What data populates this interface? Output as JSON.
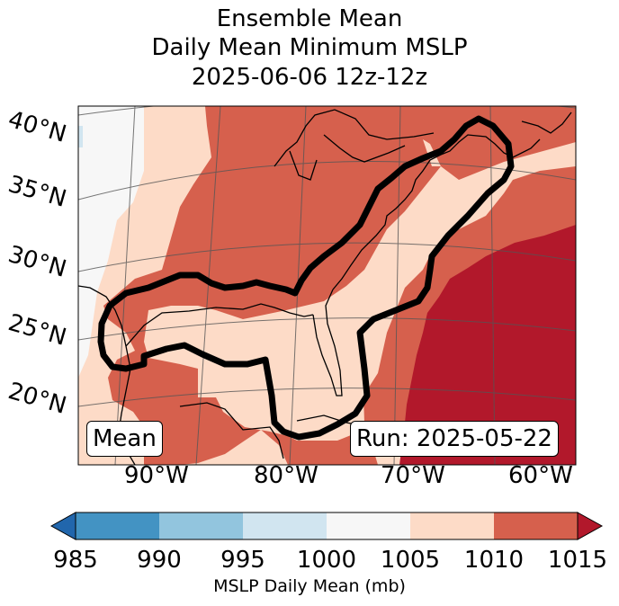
{
  "title": {
    "line1": "Ensemble Mean",
    "line2": "Daily Mean Minimum MSLP",
    "line3": "2025-06-06 12z-12z"
  },
  "map": {
    "lat_labels": [
      "40°N",
      "35°N",
      "30°N",
      "25°N",
      "20°N"
    ],
    "lon_labels": [
      "90°W",
      "80°W",
      "70°W",
      "60°W"
    ],
    "inset_left": "Mean",
    "inset_right": "Run: 2025-05-22",
    "contour_color": "#000000"
  },
  "colorbar": {
    "ticks": [
      "985",
      "990",
      "995",
      "1000",
      "1005",
      "1010",
      "1015"
    ],
    "colors": {
      "below_985": "#2166ac",
      "985_990": "#4393c3",
      "990_995": "#92c5de",
      "995_1000": "#d1e5f0",
      "1000_1005": "#f7f7f7",
      "1005_1010": "#fddbc7",
      "1010_1015": "#d6604d",
      "above_1015": "#b2182b"
    },
    "label": "MSLP Daily Mean (mb)"
  }
}
